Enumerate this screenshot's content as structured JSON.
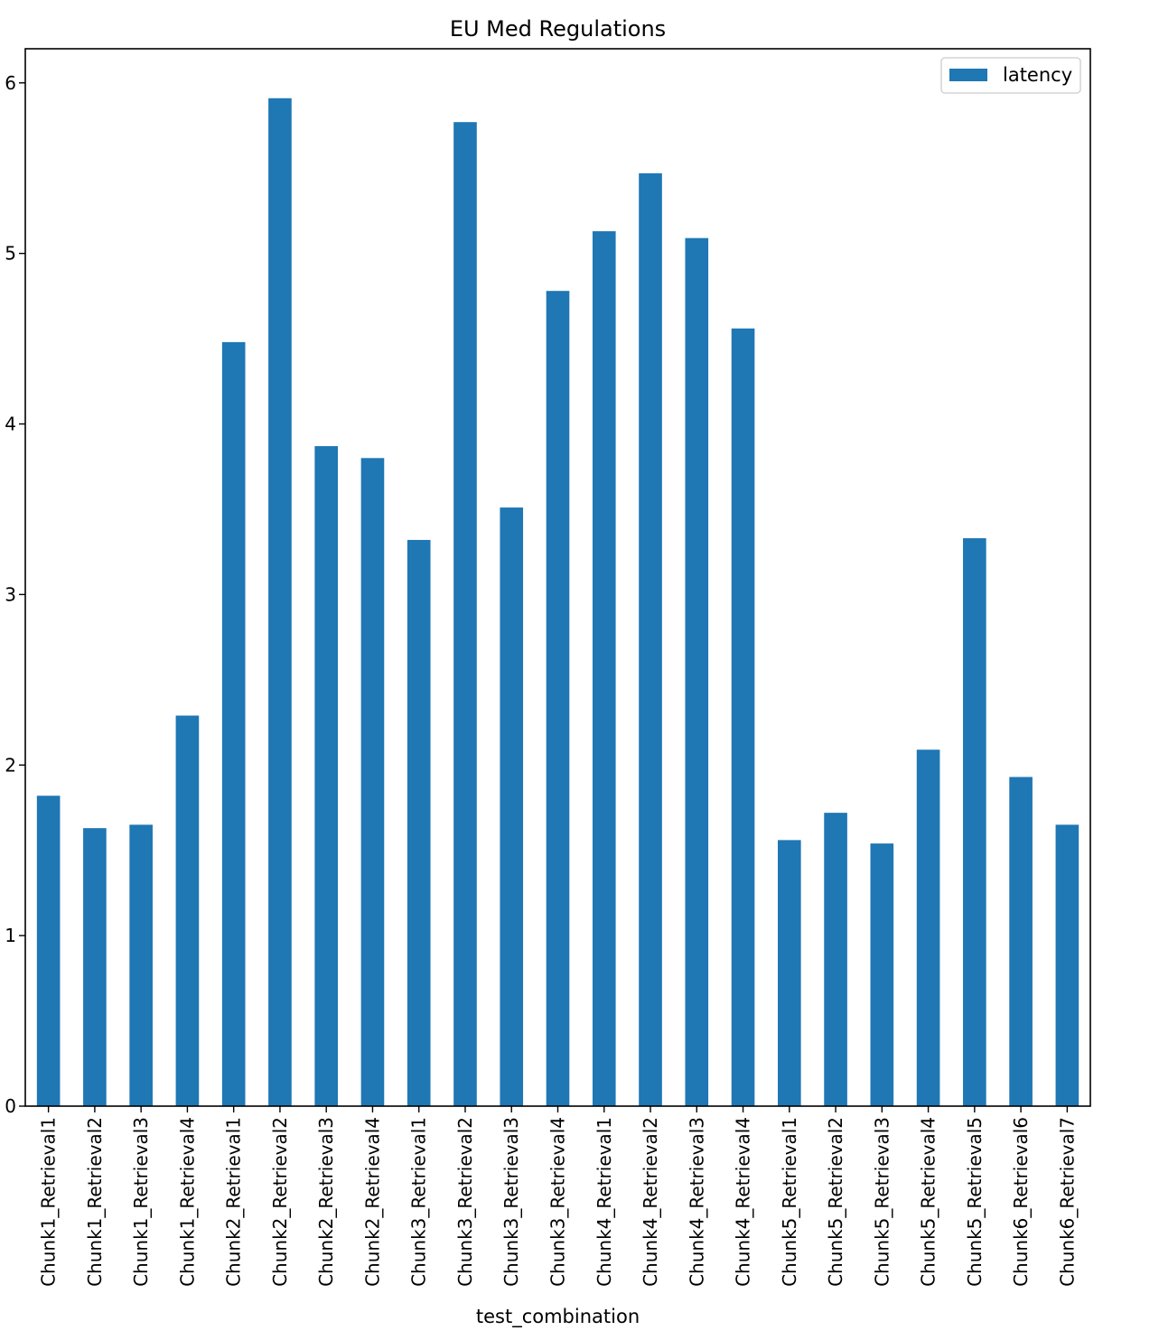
{
  "chart_data": {
    "type": "bar",
    "title": "EU Med Regulations",
    "xlabel": "test_combination",
    "ylabel": "",
    "ylim": [
      0,
      6.2
    ],
    "yticks": [
      0,
      1,
      2,
      3,
      4,
      5,
      6
    ],
    "grid": false,
    "legend_position": "top-right",
    "categories": [
      "Chunk1_Retrieval1",
      "Chunk1_Retrieval2",
      "Chunk1_Retrieval3",
      "Chunk1_Retrieval4",
      "Chunk2_Retrieval1",
      "Chunk2_Retrieval2",
      "Chunk2_Retrieval3",
      "Chunk2_Retrieval4",
      "Chunk3_Retrieval1",
      "Chunk3_Retrieval2",
      "Chunk3_Retrieval3",
      "Chunk3_Retrieval4",
      "Chunk4_Retrieval1",
      "Chunk4_Retrieval2",
      "Chunk4_Retrieval3",
      "Chunk4_Retrieval4",
      "Chunk5_Retrieval1",
      "Chunk5_Retrieval2",
      "Chunk5_Retrieval3",
      "Chunk5_Retrieval4",
      "Chunk5_Retrieval5",
      "Chunk6_Retrieval6",
      "Chunk6_Retrieval7"
    ],
    "series": [
      {
        "name": "latency",
        "color": "#1f77b4",
        "values": [
          1.82,
          1.63,
          1.65,
          2.29,
          4.48,
          5.91,
          3.87,
          3.8,
          3.32,
          5.77,
          3.51,
          4.78,
          5.13,
          5.47,
          5.09,
          4.56,
          1.56,
          1.72,
          1.54,
          2.09,
          3.33,
          1.93,
          1.65
        ]
      }
    ]
  }
}
